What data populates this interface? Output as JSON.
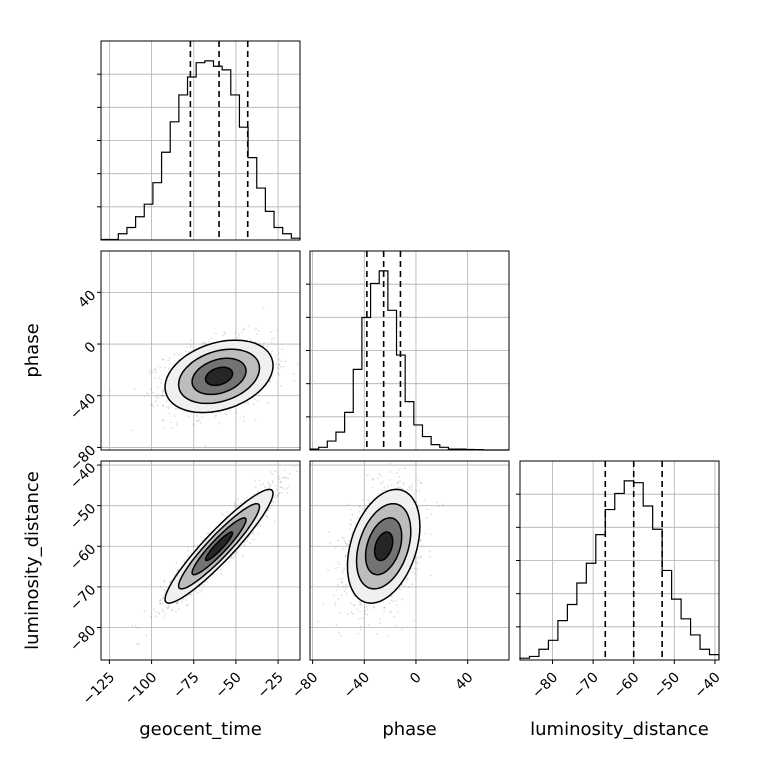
{
  "chart_data": {
    "type": "corner",
    "parameters": [
      "geocent_time",
      "phase",
      "luminosity_distance"
    ],
    "axis_labels": {
      "geocent_time": "geocent_time",
      "phase": "phase",
      "luminosity_distance": "luminosity_distance"
    },
    "ranges": {
      "geocent_time": [
        -130,
        -12
      ],
      "phase": [
        -82,
        72
      ],
      "luminosity_distance": [
        -88,
        -39
      ]
    },
    "ticks": {
      "geocent_time": [
        -125,
        -100,
        -75,
        -50,
        -25
      ],
      "phase": [
        -80,
        -40,
        0,
        40
      ],
      "luminosity_distance": [
        -80,
        -70,
        -60,
        -50,
        -40
      ]
    },
    "tick_labels": {
      "geocent_time": [
        "−125",
        "−100",
        "−75",
        "−50",
        "−25"
      ],
      "phase": [
        "−80",
        "−40",
        "0",
        "40"
      ],
      "luminosity_distance": [
        "−80",
        "−70",
        "−60",
        "−50",
        "−40"
      ]
    },
    "quantiles": {
      "geocent_time": [
        -77,
        -60,
        -43
      ],
      "phase": [
        -38,
        -25,
        -12
      ],
      "luminosity_distance": [
        -67,
        -60,
        -53
      ]
    },
    "histograms": {
      "geocent_time": [
        0.3,
        0.3,
        3.5,
        7,
        13,
        20,
        32,
        49,
        66,
        81,
        91,
        99,
        100,
        97,
        95,
        81,
        63,
        46,
        29,
        16,
        7,
        3.5,
        1
      ],
      "phase": [
        0.5,
        1.5,
        5,
        10,
        21,
        45,
        74,
        93,
        100,
        78,
        53,
        27,
        14,
        7.5,
        3,
        1.5,
        0.5,
        0.5,
        0.3,
        0.2,
        0,
        0,
        0
      ],
      "luminosity_distance": [
        1,
        2,
        6,
        11,
        22,
        31,
        43,
        54,
        70,
        84,
        93,
        100,
        99,
        86,
        73,
        50,
        34,
        23,
        14,
        6,
        3
      ]
    },
    "samples_2d": [
      {
        "x": "geocent_time",
        "y": "phase",
        "mean": [
          -60,
          -25
        ],
        "std": [
          16,
          14
        ],
        "corr": 0.3
      },
      {
        "x": "geocent_time",
        "y": "luminosity_distance",
        "mean": [
          -60,
          -60
        ],
        "std": [
          16,
          7
        ],
        "corr": 0.93
      },
      {
        "x": "phase",
        "y": "luminosity_distance",
        "mean": [
          -25,
          -60
        ],
        "std": [
          14,
          7
        ],
        "corr": 0.35
      }
    ],
    "contour_levels": [
      0.118,
      0.393,
      0.675,
      0.865
    ],
    "grid": true
  }
}
